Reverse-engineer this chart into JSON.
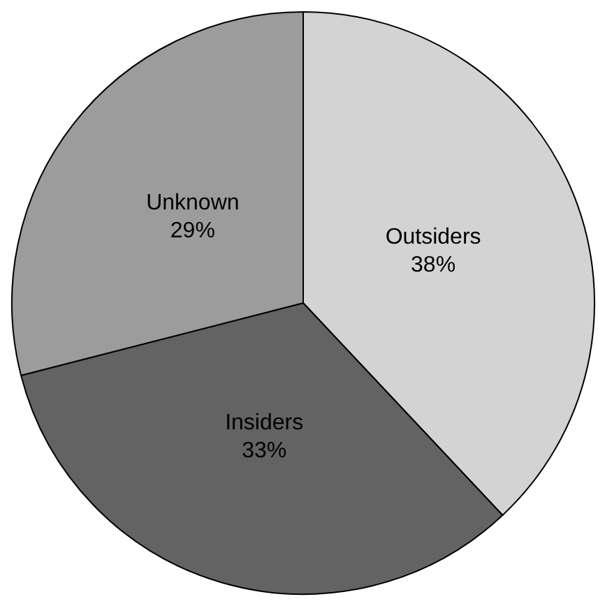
{
  "chart_data": {
    "type": "pie",
    "categories": [
      "Outsiders",
      "Insiders",
      "Unknown"
    ],
    "values": [
      38,
      33,
      29
    ],
    "colors": [
      "#d3d3d3",
      "#636363",
      "#9c9c9c"
    ],
    "value_labels": [
      "38%",
      "33%",
      "29%"
    ],
    "legend": false
  }
}
